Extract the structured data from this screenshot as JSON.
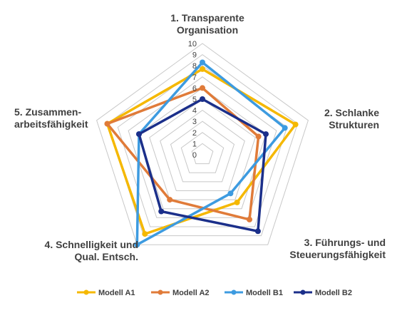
{
  "chart_data": {
    "type": "radar",
    "categories": [
      [
        "1. Transparente",
        "Organisation"
      ],
      [
        "2. Schlanke",
        "Strukturen"
      ],
      [
        "3. Führungs- und",
        "Steuerungsfähigkeit"
      ],
      [
        "4. Schnelligkeit und",
        "Qual. Entsch."
      ],
      [
        "5. Zusammen-",
        "arbeitsfähigkeit"
      ]
    ],
    "ticks": [
      "0",
      "1",
      "2",
      "3",
      "4",
      "5",
      "6",
      "7",
      "8",
      "9",
      "10"
    ],
    "rlim": [
      0,
      10
    ],
    "grid": true,
    "legend_position": "bottom",
    "series": [
      {
        "name": "Modell A1",
        "color": "#F5B800",
        "values": [
          7.7,
          8.8,
          5.3,
          8.8,
          9.0
        ]
      },
      {
        "name": "Modell A2",
        "color": "#E07B39",
        "values": [
          6.0,
          5.3,
          7.2,
          5.0,
          9.0
        ]
      },
      {
        "name": "Modell B1",
        "color": "#3D9BE0",
        "values": [
          8.3,
          7.8,
          4.3,
          10.0,
          6.0
        ]
      },
      {
        "name": "Modell B2",
        "color": "#1B2F8A",
        "values": [
          5.0,
          6.0,
          8.5,
          6.3,
          6.0
        ]
      }
    ],
    "grid_color": "#C8C8C8"
  }
}
